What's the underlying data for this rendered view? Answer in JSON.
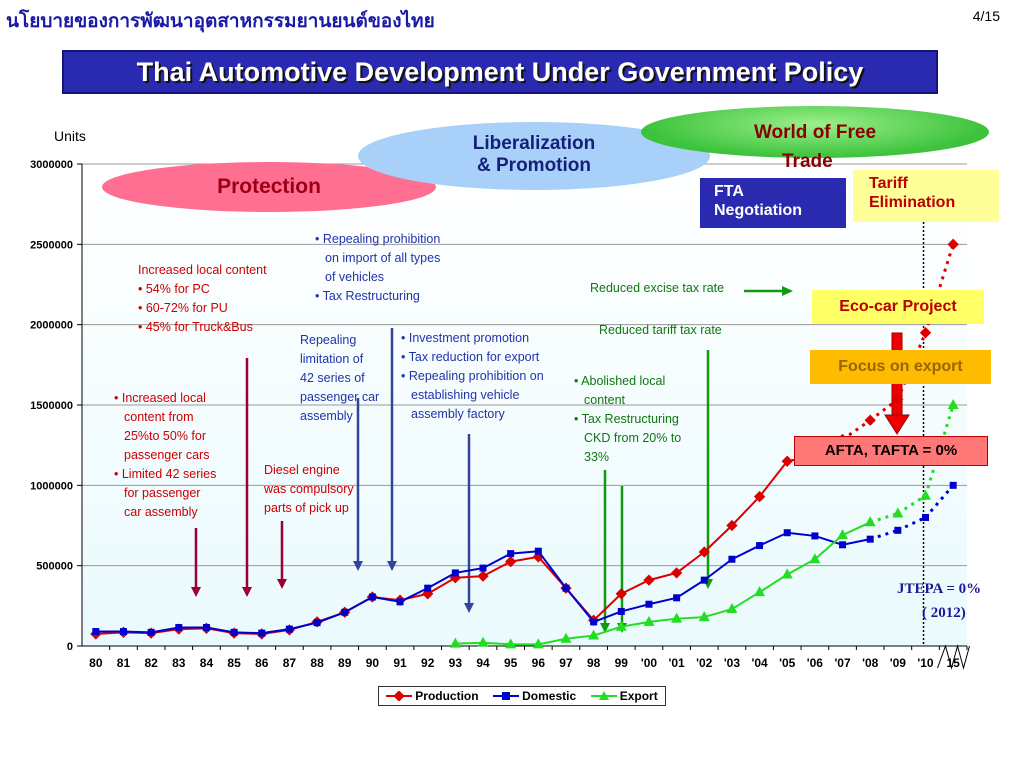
{
  "header": {
    "thai_title": "นโยบายของการพัฒนาอุตสาหกรรมยานยนต์ของไทย",
    "page_number": "4/15",
    "banner": "Thai Automotive Development Under Government Policy"
  },
  "phases": {
    "protection": "Protection",
    "liberalization_1": "Liberalization",
    "liberalization_2": "& Promotion",
    "world_1": "World of Free",
    "world_2": "Trade",
    "fta_1": "FTA",
    "fta_2": "Negotiation",
    "tariff_1": "Tariff",
    "tariff_2": "Elimination",
    "ecocar": "Eco-car Project",
    "export_focus": "Focus on export",
    "afta": "AFTA, TAFTA = 0%",
    "jtepa_1": "JTEPA = 0%",
    "jtepa_2": "( 2012)"
  },
  "annotations": {
    "a1": [
      "• Increased local",
      "content from",
      "25%to 50% for",
      "passenger cars",
      "• Limited 42 series",
      "for passenger",
      "car assembly"
    ],
    "a2": [
      "Increased local content",
      "• 54% for PC",
      "• 60-72% for PU",
      "• 45% for Truck&Bus"
    ],
    "a3": [
      "Diesel engine",
      "was compulsory",
      "parts of pick up"
    ],
    "a4": [
      "Repealing",
      "limitation of",
      "42 series of",
      "passenger car",
      "assembly"
    ],
    "a5": [
      "• Repealing prohibition",
      "on import  of all types",
      "of vehicles",
      "• Tax Restructuring"
    ],
    "a6": [
      "• Investment promotion",
      "• Tax reduction for export",
      "• Repealing prohibition on",
      "establishing vehicle",
      "assembly factory"
    ],
    "a7": [
      "• Abolished local",
      "content",
      "• Tax Restructuring",
      "CKD from 20% to",
      "33%"
    ],
    "a8": "Reduced excise tax rate",
    "a9": "Reduced tariff tax rate"
  },
  "colors": {
    "production": "#dd0000",
    "domestic": "#0000cc",
    "export": "#22dd22",
    "arrow_red": "#990033",
    "arrow_blue": "#334499",
    "arrow_green": "#119911"
  },
  "chart_data": {
    "type": "line",
    "ylabel": "Units",
    "ylim": [
      0,
      3000000
    ],
    "yticks": [
      "0",
      "500000",
      "1000000",
      "1500000",
      "2000000",
      "2500000",
      "3000000"
    ],
    "categories": [
      "80",
      "81",
      "82",
      "83",
      "84",
      "85",
      "86",
      "87",
      "88",
      "89",
      "90",
      "91",
      "92",
      "93",
      "94",
      "95",
      "96",
      "97",
      "98",
      "99",
      "'00",
      "'01",
      "'02",
      "'03",
      "'04",
      "'05",
      "'06",
      "'07",
      "'08",
      "'09",
      "'10",
      "15"
    ],
    "series": [
      {
        "name": "Production",
        "values": [
          75000,
          85000,
          80000,
          105000,
          110000,
          80000,
          75000,
          100000,
          150000,
          210000,
          305000,
          285000,
          325000,
          425000,
          435000,
          525000,
          555000,
          360000,
          160000,
          325000,
          410000,
          455000,
          585000,
          750000,
          930000,
          1150000,
          1185000,
          1285000,
          1405000,
          1535000,
          1950000,
          2500000
        ]
      },
      {
        "name": "Domestic",
        "values": [
          90000,
          90000,
          85000,
          115000,
          115000,
          85000,
          80000,
          105000,
          145000,
          210000,
          305000,
          275000,
          360000,
          455000,
          485000,
          575000,
          590000,
          360000,
          150000,
          215000,
          260000,
          300000,
          410000,
          540000,
          625000,
          705000,
          685000,
          630000,
          665000,
          720000,
          800000,
          1000000
        ]
      },
      {
        "name": "Export",
        "values": [
          null,
          null,
          null,
          null,
          null,
          null,
          null,
          null,
          null,
          null,
          null,
          null,
          null,
          15000,
          20000,
          10000,
          10000,
          45000,
          65000,
          120000,
          150000,
          170000,
          180000,
          230000,
          335000,
          445000,
          540000,
          690000,
          770000,
          825000,
          935000,
          1500000
        ]
      }
    ],
    "solid_until_index": {
      "Production": 27,
      "Domestic": 28,
      "Export": 28
    },
    "legend": "bottom-center"
  }
}
